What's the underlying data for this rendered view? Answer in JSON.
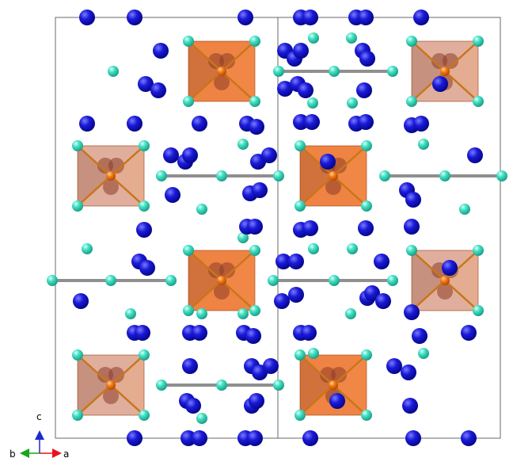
{
  "axes": {
    "c": "c",
    "b": "b",
    "a": "a",
    "colors": {
      "a": "#e8141a",
      "b": "#1aa51a",
      "c": "#1a2ad0"
    }
  },
  "colors": {
    "cation": "#1212c8",
    "cation_highlight": "#7a7aff",
    "anion": "#3fe0c0",
    "anion_highlight": "#d8fff6",
    "octahedron": "#e8641a",
    "metal": "#f07818",
    "bond": "#9a9a9a",
    "cell_edge": "#6a6a6a"
  }
}
